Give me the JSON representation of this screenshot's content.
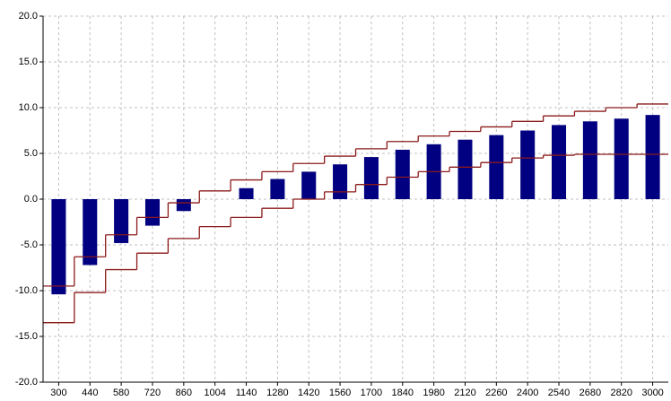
{
  "chart_data": {
    "type": "bar",
    "categories": [
      "300",
      "440",
      "580",
      "720",
      "860",
      "1004",
      "1140",
      "1280",
      "1420",
      "1560",
      "1700",
      "1840",
      "1980",
      "2120",
      "2260",
      "2400",
      "2540",
      "2680",
      "2820",
      "3000"
    ],
    "series": [
      {
        "color": "#000080",
        "values": [
          -10.4,
          -7.2,
          -4.8,
          -2.9,
          -1.3,
          0.0,
          1.2,
          2.2,
          3.0,
          3.8,
          4.6,
          5.4,
          6.0,
          6.5,
          7.0,
          7.5,
          8.1,
          8.5,
          8.8,
          9.2
        ]
      },
      {
        "color": "#8b1a1a",
        "style": "step",
        "values": [
          -9.5,
          -6.3,
          -3.9,
          -2.0,
          -0.4,
          0.9,
          2.1,
          3.0,
          3.9,
          4.7,
          5.5,
          6.3,
          6.9,
          7.4,
          7.9,
          8.5,
          9.1,
          9.6,
          10.0,
          10.4
        ]
      },
      {
        "color": "#8b1a1a",
        "style": "step",
        "values": [
          -13.5,
          -10.2,
          -7.7,
          -5.9,
          -4.3,
          -3.0,
          -2.0,
          -1.0,
          0.0,
          0.8,
          1.6,
          2.4,
          3.0,
          3.5,
          4.0,
          4.5,
          4.8,
          4.9,
          4.9,
          4.9
        ]
      }
    ],
    "ylim": [
      -20,
      20
    ],
    "yticks": [
      {
        "value": -20,
        "label": "-20.0"
      },
      {
        "value": -15,
        "label": "-15.0"
      },
      {
        "value": -10,
        "label": "-10.0"
      },
      {
        "value": -5,
        "label": "-5.0"
      },
      {
        "value": 0,
        "label": "0.0"
      },
      {
        "value": 5,
        "label": "5.0"
      },
      {
        "value": 10,
        "label": "10.0"
      },
      {
        "value": 15,
        "label": "15.0"
      },
      {
        "value": 20,
        "label": "20.0"
      }
    ],
    "grid": true
  }
}
